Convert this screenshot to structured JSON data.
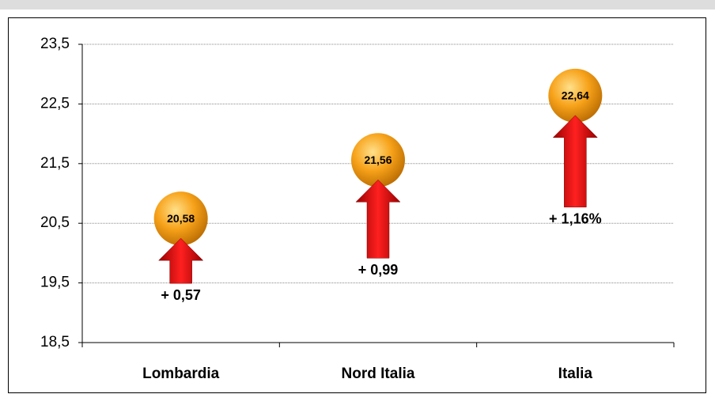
{
  "chart_data": {
    "type": "bubble-arrow",
    "categories": [
      "Lombardia",
      "Nord Italia",
      "Italia"
    ],
    "values": [
      20.58,
      21.56,
      22.64
    ],
    "value_labels": [
      "20,58",
      "21,56",
      "22,64"
    ],
    "changes": {
      "values": [
        0.57,
        0.99,
        1.16
      ],
      "value_labels": [
        "+ 0,57",
        "+ 0,99",
        "+ 1,16%"
      ],
      "color": "#e00000"
    },
    "color": "#f5a623",
    "ylim": [
      18.5,
      23.5
    ],
    "yticks": [
      {
        "value": 18.5,
        "label": "18,5"
      },
      {
        "value": 19.5,
        "label": "19,5"
      },
      {
        "value": 20.5,
        "label": "20,5"
      },
      {
        "value": 21.5,
        "label": "21,5"
      },
      {
        "value": 22.5,
        "label": "22,5"
      },
      {
        "value": 23.5,
        "label": "23,5"
      }
    ],
    "grid": true
  }
}
